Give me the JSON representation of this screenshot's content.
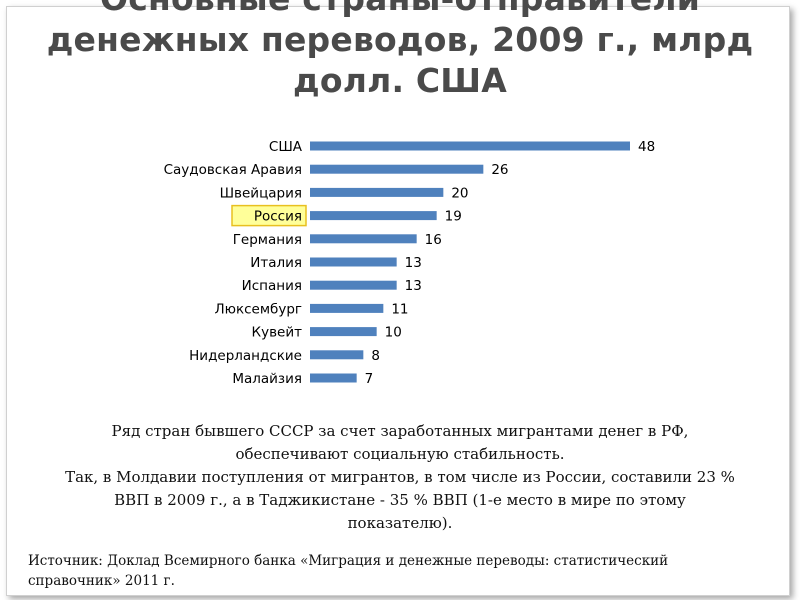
{
  "slide": {
    "title_lines": [
      "Основные страны-отправители",
      "денежных переводов, 2009 г., млрд",
      "долл. США"
    ],
    "body_lines": [
      "Ряд стран бывшего СССР за счет заработанных мигрантами денег в РФ,",
      "обеспечивают социальную стабильность.",
      "Так, в Молдавии поступления от мигрантов, в том числе из России, составили 23 %",
      "ВВП в 2009 г., а в Таджикистане - 35 % ВВП (1-е место в мире по этому",
      "показателю)."
    ],
    "source_lines": [
      "Источник: Доклад Всемирного банка «Миграция и денежные переводы: статистический",
      "справочник» 2011 г."
    ]
  },
  "chart_data": {
    "type": "bar",
    "orientation": "horizontal",
    "categories": [
      "США",
      "Саудовская Аравия",
      "Швейцария",
      "Россия",
      "Германия",
      "Италия",
      "Испания",
      "Люксембург",
      "Кувейт",
      "Нидерландские",
      "Малайзия"
    ],
    "values": [
      48,
      26,
      20,
      19,
      16,
      13,
      13,
      11,
      10,
      8,
      7
    ],
    "highlighted_category": "Россия",
    "bar_color": "#4f81bd",
    "highlight_fill": "#ffff99",
    "highlight_border": "#e8c020",
    "xlim": [
      0,
      50
    ],
    "axis_visible": false,
    "grid": false,
    "data_labels": true
  }
}
